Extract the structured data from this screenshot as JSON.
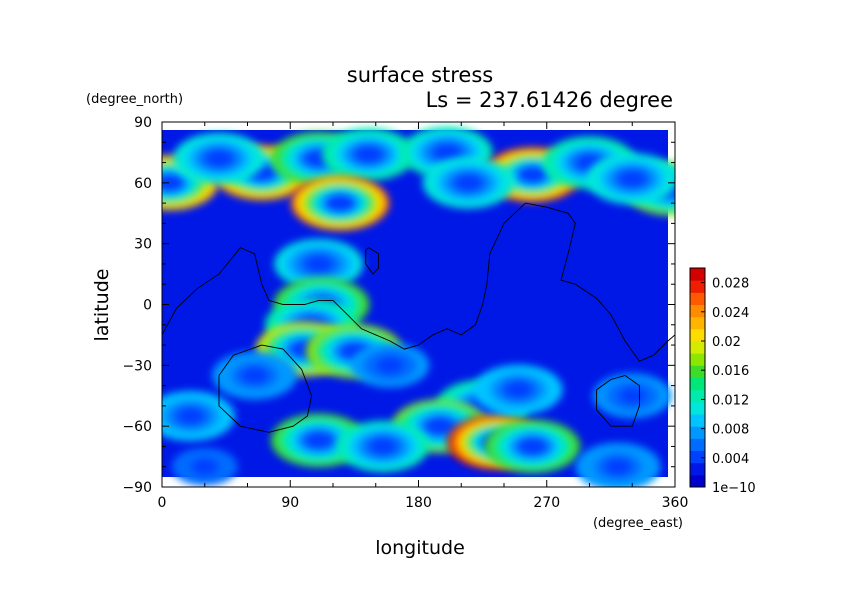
{
  "chart_data": {
    "type": "heatmap",
    "title": "surface stress",
    "subtitle": "Ls = 237.61426 degree",
    "xlabel": "longitude",
    "ylabel": "latitude",
    "x_unit": "(degree_east)",
    "y_unit": "(degree_north)",
    "xlim": [
      0,
      360
    ],
    "ylim": [
      -90,
      90
    ],
    "x_ticks": [
      "0",
      "90",
      "180",
      "270",
      "360"
    ],
    "x_tick_values": [
      0,
      90,
      180,
      270,
      360
    ],
    "y_ticks": [
      "90",
      "60",
      "30",
      "0",
      "−30",
      "−60",
      "−90"
    ],
    "y_tick_values": [
      90,
      60,
      30,
      0,
      -30,
      -60,
      -90
    ],
    "colorbar": {
      "ticks": [
        "0.028",
        "0.024",
        "0.02",
        "0.016",
        "0.012",
        "0.008",
        "0.004",
        "1e−10"
      ],
      "tick_values": [
        0.028,
        0.024,
        0.02,
        0.016,
        0.012,
        0.008,
        0.004,
        1e-10
      ],
      "range": [
        0,
        0.03
      ],
      "colors": [
        "#0000cd",
        "#0018e6",
        "#0040ff",
        "#006cff",
        "#0098ff",
        "#00c4ff",
        "#00e6dc",
        "#00ebaa",
        "#00e678",
        "#3cdc28",
        "#8ce600",
        "#d2eb00",
        "#ffdc00",
        "#ffb400",
        "#ff8c00",
        "#ff5a00",
        "#f01e00",
        "#d20000"
      ]
    },
    "background_level": 0.003,
    "hotspots": [
      {
        "lon": 5,
        "lat": 60,
        "value": 0.023
      },
      {
        "lon": 358,
        "lat": 57,
        "value": 0.017
      },
      {
        "lon": 70,
        "lat": 65,
        "value": 0.024
      },
      {
        "lon": 110,
        "lat": 72,
        "value": 0.016
      },
      {
        "lon": 145,
        "lat": 74,
        "value": 0.013
      },
      {
        "lon": 40,
        "lat": 72,
        "value": 0.011
      },
      {
        "lon": 125,
        "lat": 50,
        "value": 0.025
      },
      {
        "lon": 200,
        "lat": 75,
        "value": 0.012
      },
      {
        "lon": 260,
        "lat": 64,
        "value": 0.027
      },
      {
        "lon": 300,
        "lat": 70,
        "value": 0.013
      },
      {
        "lon": 330,
        "lat": 62,
        "value": 0.011
      },
      {
        "lon": 215,
        "lat": 60,
        "value": 0.011
      },
      {
        "lon": 110,
        "lat": 20,
        "value": 0.01
      },
      {
        "lon": 112,
        "lat": 0,
        "value": 0.016
      },
      {
        "lon": 105,
        "lat": -10,
        "value": 0.013
      },
      {
        "lon": 100,
        "lat": -22,
        "value": 0.019
      },
      {
        "lon": 135,
        "lat": -23,
        "value": 0.018
      },
      {
        "lon": 65,
        "lat": -35,
        "value": 0.008
      },
      {
        "lon": 160,
        "lat": -30,
        "value": 0.007
      },
      {
        "lon": 20,
        "lat": -55,
        "value": 0.009
      },
      {
        "lon": 225,
        "lat": -50,
        "value": 0.013
      },
      {
        "lon": 195,
        "lat": -60,
        "value": 0.017
      },
      {
        "lon": 235,
        "lat": -68,
        "value": 0.029
      },
      {
        "lon": 260,
        "lat": -70,
        "value": 0.016
      },
      {
        "lon": 110,
        "lat": -67,
        "value": 0.016
      },
      {
        "lon": 155,
        "lat": -70,
        "value": 0.012
      },
      {
        "lon": 250,
        "lat": -42,
        "value": 0.009
      },
      {
        "lon": 320,
        "lat": -80,
        "value": 0.008
      },
      {
        "lon": 30,
        "lat": -80,
        "value": 0.005
      },
      {
        "lon": 330,
        "lat": -45,
        "value": 0.007
      }
    ],
    "contours": [
      [
        [
          0,
          -15
        ],
        [
          10,
          -2
        ],
        [
          25,
          8
        ],
        [
          40,
          15
        ],
        [
          55,
          28
        ],
        [
          65,
          25
        ],
        [
          70,
          10
        ],
        [
          75,
          2
        ],
        [
          85,
          0
        ],
        [
          100,
          0
        ],
        [
          110,
          2
        ],
        [
          120,
          2
        ],
        [
          130,
          -5
        ],
        [
          140,
          -12
        ],
        [
          150,
          -15
        ],
        [
          160,
          -18
        ],
        [
          170,
          -22
        ],
        [
          180,
          -20
        ],
        [
          190,
          -15
        ],
        [
          200,
          -12
        ],
        [
          210,
          -15
        ],
        [
          220,
          -10
        ],
        [
          225,
          0
        ],
        [
          228,
          10
        ],
        [
          230,
          25
        ],
        [
          240,
          40
        ],
        [
          255,
          50
        ],
        [
          270,
          48
        ],
        [
          285,
          45
        ],
        [
          290,
          40
        ],
        [
          285,
          25
        ],
        [
          280,
          12
        ],
        [
          290,
          10
        ],
        [
          305,
          3
        ],
        [
          315,
          -5
        ],
        [
          325,
          -18
        ],
        [
          335,
          -28
        ],
        [
          345,
          -25
        ],
        [
          355,
          -18
        ],
        [
          360,
          -15
        ]
      ],
      [
        [
          145,
          28
        ],
        [
          152,
          25
        ],
        [
          152,
          18
        ],
        [
          148,
          15
        ],
        [
          143,
          20
        ],
        [
          143,
          27
        ],
        [
          145,
          28
        ]
      ],
      [
        [
          70,
          -20
        ],
        [
          85,
          -22
        ],
        [
          98,
          -32
        ],
        [
          105,
          -45
        ],
        [
          102,
          -55
        ],
        [
          92,
          -60
        ],
        [
          75,
          -63
        ],
        [
          55,
          -60
        ],
        [
          40,
          -50
        ],
        [
          40,
          -35
        ],
        [
          50,
          -25
        ],
        [
          70,
          -20
        ]
      ],
      [
        [
          325,
          -35
        ],
        [
          335,
          -40
        ],
        [
          335,
          -50
        ],
        [
          330,
          -60
        ],
        [
          315,
          -60
        ],
        [
          305,
          -52
        ],
        [
          305,
          -42
        ],
        [
          315,
          -37
        ],
        [
          325,
          -35
        ]
      ]
    ]
  }
}
